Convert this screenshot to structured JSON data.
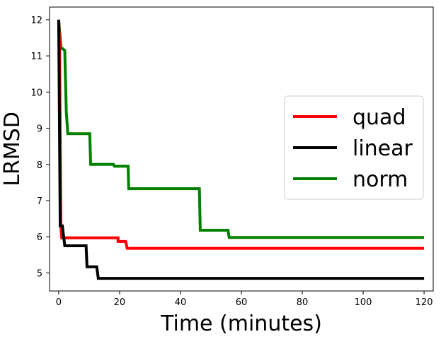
{
  "chart_data": {
    "type": "line",
    "title": "",
    "xlabel": "Time (minutes)",
    "ylabel": "LRMSD",
    "xlim": [
      -3,
      123
    ],
    "ylim": [
      4.5,
      12.35
    ],
    "xticks": [
      0,
      20,
      40,
      60,
      80,
      100,
      120
    ],
    "yticks": [
      5,
      6,
      7,
      8,
      9,
      10,
      11,
      12
    ],
    "grid": false,
    "legend_position": "center-right",
    "line_style": "step",
    "series": [
      {
        "name": "quad",
        "color": "#ff0000",
        "points": [
          [
            0,
            12.0
          ],
          [
            0.3,
            11.3
          ],
          [
            0.7,
            6.3
          ],
          [
            1.0,
            5.97
          ],
          [
            19.5,
            5.97
          ],
          [
            19.5,
            5.87
          ],
          [
            22.0,
            5.87
          ],
          [
            22.5,
            5.68
          ],
          [
            120,
            5.68
          ]
        ]
      },
      {
        "name": "linear",
        "color": "#000000",
        "points": [
          [
            0,
            12.0
          ],
          [
            0.5,
            6.3
          ],
          [
            1.2,
            6.3
          ],
          [
            2.0,
            5.75
          ],
          [
            9.0,
            5.75
          ],
          [
            9.3,
            5.17
          ],
          [
            12.5,
            5.17
          ],
          [
            13.0,
            4.85
          ],
          [
            120,
            4.85
          ]
        ]
      },
      {
        "name": "norm",
        "color": "#008000",
        "points": [
          [
            0,
            12.0
          ],
          [
            0.8,
            11.2
          ],
          [
            1.3,
            11.2
          ],
          [
            2.0,
            11.15
          ],
          [
            2.5,
            9.45
          ],
          [
            3.0,
            8.85
          ],
          [
            10.2,
            8.85
          ],
          [
            10.5,
            8.0
          ],
          [
            18.0,
            8.0
          ],
          [
            18.3,
            7.95
          ],
          [
            22.8,
            7.95
          ],
          [
            23.0,
            7.33
          ],
          [
            46.2,
            7.33
          ],
          [
            46.5,
            6.18
          ],
          [
            55.6,
            6.18
          ],
          [
            56.0,
            5.98
          ],
          [
            120,
            5.98
          ]
        ]
      }
    ]
  }
}
